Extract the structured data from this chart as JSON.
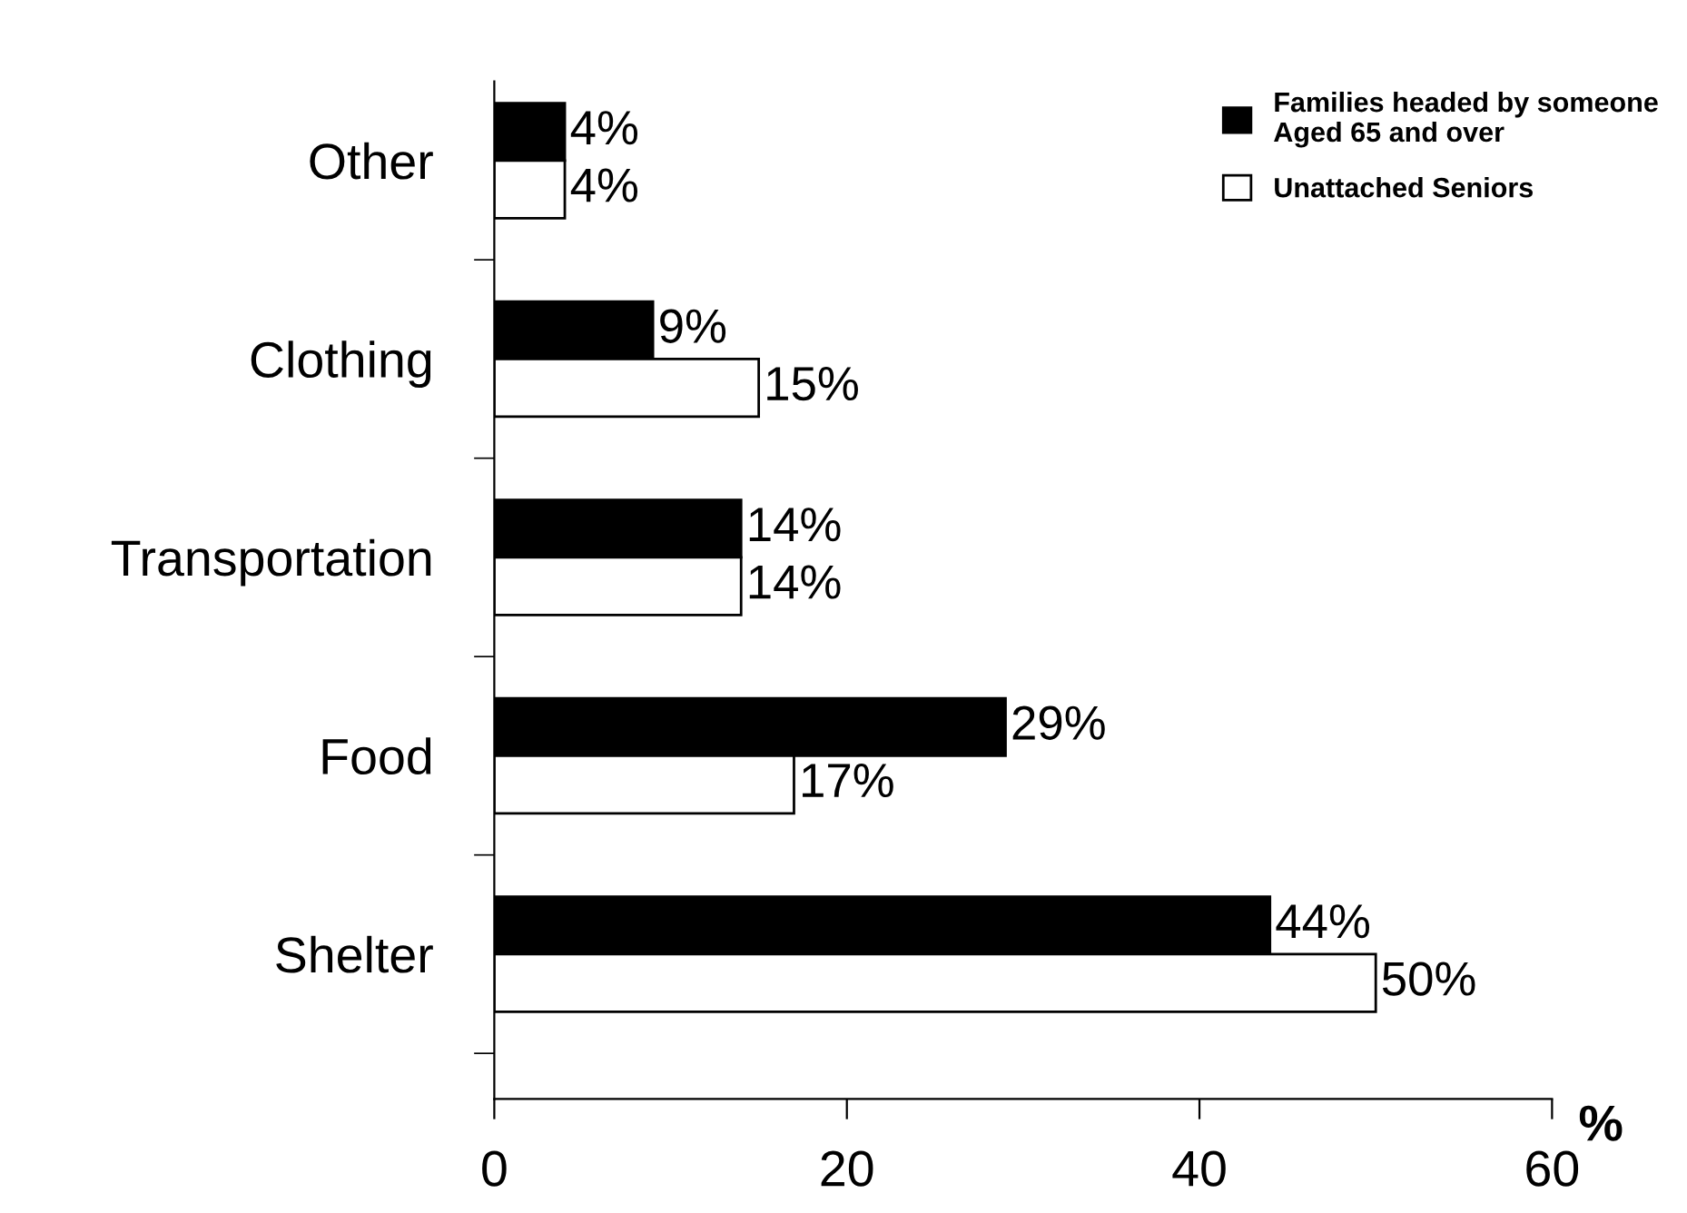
{
  "chart_data": {
    "type": "bar",
    "orientation": "horizontal",
    "categories": [
      "Other",
      "Clothing",
      "Transportation",
      "Food",
      "Shelter"
    ],
    "series": [
      {
        "name": "Families headed by someone Aged 65 and over",
        "color": "#000000",
        "values": [
          4,
          9,
          14,
          29,
          44
        ],
        "value_labels": [
          "4%",
          "9%",
          "14%",
          "29%",
          "44%"
        ]
      },
      {
        "name": "Unattached Seniors",
        "color": "#ffffff",
        "values": [
          4,
          15,
          14,
          17,
          50
        ],
        "value_labels": [
          "4%",
          "15%",
          "14%",
          "17%",
          "50%"
        ]
      }
    ],
    "xlabel": "%",
    "xlim": [
      0,
      60
    ],
    "xticks": [
      0,
      20,
      40,
      60
    ],
    "grid": false,
    "legend": "top right"
  }
}
